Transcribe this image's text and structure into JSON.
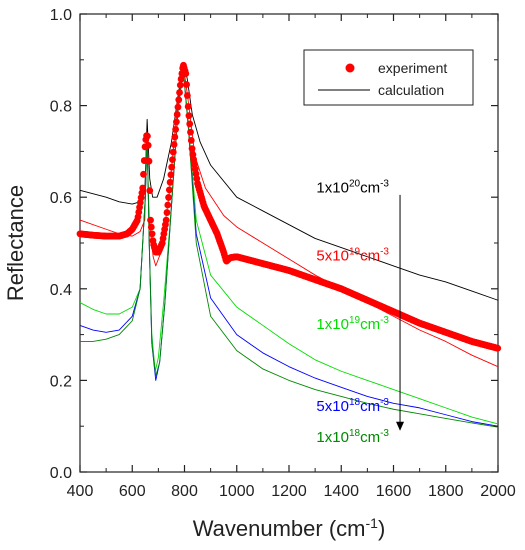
{
  "chart_data": {
    "type": "line",
    "xlabel": "Wavenumber (cm",
    "xlabel_sup": "-1",
    "xlabel_close": ")",
    "ylabel": "Reflectance",
    "xlim": [
      400,
      2000
    ],
    "ylim": [
      0.0,
      1.0
    ],
    "x_ticks": [
      "400",
      "600",
      "800",
      "1000",
      "1200",
      "1400",
      "1600",
      "1800",
      "2000"
    ],
    "y_ticks": [
      "0.0",
      "0.2",
      "0.4",
      "0.6",
      "0.8",
      "1.0"
    ],
    "grid": false,
    "legend": {
      "placement": "top-right",
      "entries": [
        {
          "label": "experiment",
          "style": "markers",
          "color": "#ff0000"
        },
        {
          "label": "calculation",
          "style": "line",
          "color": "#000000"
        }
      ]
    },
    "series": [
      {
        "name": "experiment",
        "style": "markers",
        "color": "#ff0000",
        "points": [
          [
            400,
            0.52
          ],
          [
            450,
            0.517
          ],
          [
            500,
            0.515
          ],
          [
            550,
            0.515
          ],
          [
            580,
            0.52
          ],
          [
            600,
            0.53
          ],
          [
            620,
            0.55
          ],
          [
            640,
            0.62
          ],
          [
            650,
            0.72
          ],
          [
            657,
            0.74
          ],
          [
            663,
            0.7
          ],
          [
            670,
            0.55
          ],
          [
            680,
            0.5
          ],
          [
            690,
            0.48
          ],
          [
            700,
            0.48
          ],
          [
            715,
            0.5
          ],
          [
            730,
            0.55
          ],
          [
            750,
            0.66
          ],
          [
            770,
            0.77
          ],
          [
            785,
            0.85
          ],
          [
            795,
            0.89
          ],
          [
            805,
            0.87
          ],
          [
            815,
            0.79
          ],
          [
            830,
            0.7
          ],
          [
            850,
            0.63
          ],
          [
            875,
            0.58
          ],
          [
            900,
            0.55
          ],
          [
            925,
            0.52
          ],
          [
            950,
            0.48
          ],
          [
            960,
            0.46
          ],
          [
            975,
            0.468
          ],
          [
            1000,
            0.47
          ],
          [
            1100,
            0.455
          ],
          [
            1200,
            0.44
          ],
          [
            1300,
            0.42
          ],
          [
            1400,
            0.4
          ],
          [
            1500,
            0.375
          ],
          [
            1600,
            0.35
          ],
          [
            1700,
            0.325
          ],
          [
            1800,
            0.305
          ],
          [
            1900,
            0.285
          ],
          [
            2000,
            0.27
          ]
        ]
      },
      {
        "name": "",
        "style": "line",
        "color": "#000000",
        "points": [
          [
            400,
            0.615
          ],
          [
            500,
            0.6
          ],
          [
            550,
            0.59
          ],
          [
            600,
            0.585
          ],
          [
            630,
            0.59
          ],
          [
            648,
            0.61
          ],
          [
            657,
            0.77
          ],
          [
            667,
            0.64
          ],
          [
            678,
            0.6
          ],
          [
            695,
            0.6
          ],
          [
            720,
            0.64
          ],
          [
            750,
            0.72
          ],
          [
            775,
            0.82
          ],
          [
            795,
            0.89
          ],
          [
            810,
            0.86
          ],
          [
            830,
            0.78
          ],
          [
            860,
            0.72
          ],
          [
            900,
            0.67
          ],
          [
            1000,
            0.6
          ],
          [
            1100,
            0.57
          ],
          [
            1200,
            0.54
          ],
          [
            1300,
            0.51
          ],
          [
            1400,
            0.49
          ],
          [
            1500,
            0.47
          ],
          [
            1600,
            0.45
          ],
          [
            1700,
            0.43
          ],
          [
            1800,
            0.415
          ],
          [
            1900,
            0.395
          ],
          [
            2000,
            0.375
          ]
        ]
      },
      {
        "name": "",
        "style": "line",
        "color": "#ff0000",
        "points": [
          [
            400,
            0.55
          ],
          [
            500,
            0.53
          ],
          [
            550,
            0.52
          ],
          [
            600,
            0.515
          ],
          [
            630,
            0.525
          ],
          [
            648,
            0.55
          ],
          [
            655,
            0.74
          ],
          [
            665,
            0.55
          ],
          [
            680,
            0.47
          ],
          [
            690,
            0.45
          ],
          [
            710,
            0.48
          ],
          [
            740,
            0.6
          ],
          [
            770,
            0.78
          ],
          [
            795,
            0.89
          ],
          [
            812,
            0.82
          ],
          [
            840,
            0.69
          ],
          [
            880,
            0.62
          ],
          [
            950,
            0.56
          ],
          [
            1000,
            0.535
          ],
          [
            1100,
            0.5
          ],
          [
            1200,
            0.465
          ],
          [
            1300,
            0.43
          ],
          [
            1400,
            0.4
          ],
          [
            1500,
            0.37
          ],
          [
            1600,
            0.34
          ],
          [
            1700,
            0.31
          ],
          [
            1800,
            0.285
          ],
          [
            1900,
            0.255
          ],
          [
            2000,
            0.23
          ]
        ]
      },
      {
        "name": "",
        "style": "line",
        "color": "#00dd00",
        "points": [
          [
            400,
            0.37
          ],
          [
            450,
            0.355
          ],
          [
            500,
            0.345
          ],
          [
            550,
            0.345
          ],
          [
            600,
            0.36
          ],
          [
            630,
            0.4
          ],
          [
            650,
            0.6
          ],
          [
            657,
            0.74
          ],
          [
            665,
            0.5
          ],
          [
            675,
            0.3
          ],
          [
            688,
            0.22
          ],
          [
            700,
            0.25
          ],
          [
            720,
            0.37
          ],
          [
            750,
            0.58
          ],
          [
            775,
            0.79
          ],
          [
            795,
            0.88
          ],
          [
            815,
            0.76
          ],
          [
            845,
            0.55
          ],
          [
            900,
            0.43
          ],
          [
            1000,
            0.36
          ],
          [
            1100,
            0.32
          ],
          [
            1200,
            0.28
          ],
          [
            1300,
            0.245
          ],
          [
            1400,
            0.22
          ],
          [
            1500,
            0.2
          ],
          [
            1600,
            0.18
          ],
          [
            1700,
            0.16
          ],
          [
            1800,
            0.14
          ],
          [
            1900,
            0.12
          ],
          [
            2000,
            0.105
          ]
        ]
      },
      {
        "name": "",
        "style": "line",
        "color": "#0000ff",
        "points": [
          [
            400,
            0.32
          ],
          [
            450,
            0.31
          ],
          [
            500,
            0.305
          ],
          [
            550,
            0.31
          ],
          [
            600,
            0.34
          ],
          [
            630,
            0.4
          ],
          [
            650,
            0.6
          ],
          [
            657,
            0.74
          ],
          [
            665,
            0.5
          ],
          [
            675,
            0.28
          ],
          [
            690,
            0.2
          ],
          [
            705,
            0.24
          ],
          [
            725,
            0.37
          ],
          [
            750,
            0.58
          ],
          [
            775,
            0.79
          ],
          [
            795,
            0.88
          ],
          [
            815,
            0.75
          ],
          [
            845,
            0.52
          ],
          [
            900,
            0.38
          ],
          [
            1000,
            0.3
          ],
          [
            1100,
            0.26
          ],
          [
            1200,
            0.23
          ],
          [
            1300,
            0.205
          ],
          [
            1400,
            0.185
          ],
          [
            1500,
            0.165
          ],
          [
            1600,
            0.15
          ],
          [
            1700,
            0.14
          ],
          [
            1800,
            0.125
          ],
          [
            1900,
            0.11
          ],
          [
            2000,
            0.1
          ]
        ]
      },
      {
        "name": "",
        "style": "line",
        "color": "#008800",
        "points": [
          [
            400,
            0.285
          ],
          [
            450,
            0.285
          ],
          [
            500,
            0.29
          ],
          [
            550,
            0.3
          ],
          [
            600,
            0.33
          ],
          [
            630,
            0.4
          ],
          [
            650,
            0.6
          ],
          [
            657,
            0.74
          ],
          [
            665,
            0.5
          ],
          [
            675,
            0.28
          ],
          [
            690,
            0.21
          ],
          [
            705,
            0.24
          ],
          [
            725,
            0.37
          ],
          [
            750,
            0.58
          ],
          [
            775,
            0.79
          ],
          [
            795,
            0.88
          ],
          [
            815,
            0.75
          ],
          [
            845,
            0.5
          ],
          [
            900,
            0.34
          ],
          [
            1000,
            0.265
          ],
          [
            1100,
            0.225
          ],
          [
            1200,
            0.2
          ],
          [
            1300,
            0.18
          ],
          [
            1400,
            0.165
          ],
          [
            1500,
            0.15
          ],
          [
            1600,
            0.137
          ],
          [
            1700,
            0.127
          ],
          [
            1800,
            0.117
          ],
          [
            1900,
            0.107
          ],
          [
            2000,
            0.098
          ]
        ]
      }
    ],
    "annotations": [
      {
        "base": "1x10",
        "exp": "20",
        "unit": "cm",
        "unit_exp": "-3",
        "color": "#000000",
        "x": 1305,
        "y": 0.61
      },
      {
        "base": "5x10",
        "exp": "19",
        "unit": "cm",
        "unit_exp": "-3",
        "color": "#ff0000",
        "x": 1305,
        "y": 0.462
      },
      {
        "base": "1x10",
        "exp": "19",
        "unit": "cm",
        "unit_exp": "-3",
        "color": "#00dd00",
        "x": 1305,
        "y": 0.312
      },
      {
        "base": "5x10",
        "exp": "18",
        "unit": "cm",
        "unit_exp": "-3",
        "color": "#0000ff",
        "x": 1305,
        "y": 0.133
      },
      {
        "base": "1x10",
        "exp": "18",
        "unit": "cm",
        "unit_exp": "-3",
        "color": "#008800",
        "x": 1305,
        "y": 0.065
      }
    ],
    "arrow": {
      "x": 1625,
      "y_start": 0.605,
      "y_end": 0.09,
      "color": "#000000"
    }
  }
}
